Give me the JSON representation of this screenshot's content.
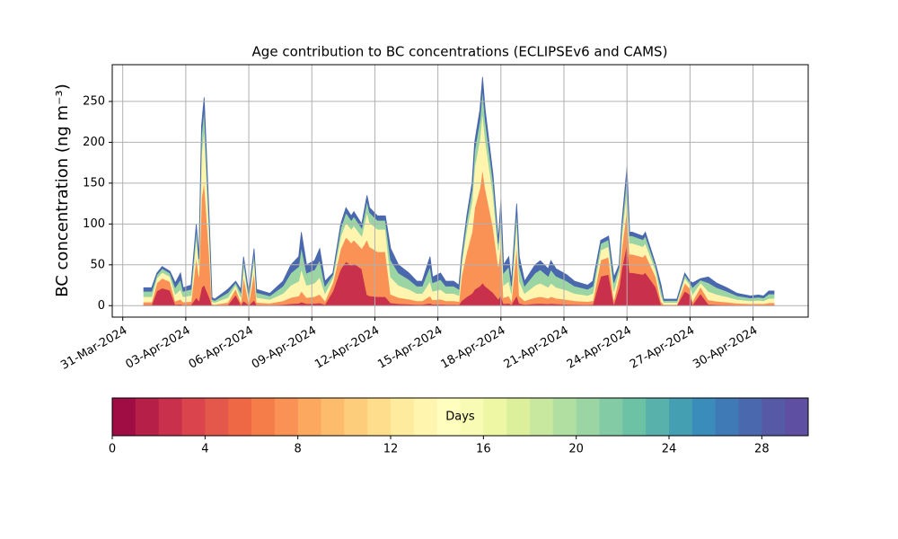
{
  "chart_data": {
    "type": "area",
    "title": "Age contribution to BC concentrations (ECLIPSEv6 and CAMS)",
    "ylabel": "BC concentration (ng m⁻³)",
    "x": [
      "2024-04-01T00:00",
      "2024-04-01T09:00",
      "2024-04-01T15:00",
      "2024-04-01T21:00",
      "2024-04-02T06:00",
      "2024-04-02T12:00",
      "2024-04-02T18:00",
      "2024-04-02T21:00",
      "2024-04-03T06:00",
      "2024-04-03T12:00",
      "2024-04-03T15:00",
      "2024-04-03T18:00",
      "2024-04-03T21:00",
      "2024-04-04T03:00",
      "2024-04-04T06:00",
      "2024-04-04T09:00",
      "2024-04-05T00:00",
      "2024-04-05T09:00",
      "2024-04-05T15:00",
      "2024-04-05T18:00",
      "2024-04-06T00:00",
      "2024-04-06T06:00",
      "2024-04-06T09:00",
      "2024-04-07T00:00",
      "2024-04-07T15:00",
      "2024-04-08T00:00",
      "2024-04-08T09:00",
      "2024-04-08T12:00",
      "2024-04-08T18:00",
      "2024-04-09T03:00",
      "2024-04-09T09:00",
      "2024-04-09T15:00",
      "2024-04-10T00:00",
      "2024-04-10T09:00",
      "2024-04-10T15:00",
      "2024-04-10T21:00",
      "2024-04-11T00:00",
      "2024-04-11T09:00",
      "2024-04-11T15:00",
      "2024-04-11T18:00",
      "2024-04-12T03:00",
      "2024-04-12T12:00",
      "2024-04-12T18:00",
      "2024-04-13T03:00",
      "2024-04-13T15:00",
      "2024-04-14T00:00",
      "2024-04-14T06:00",
      "2024-04-14T15:00",
      "2024-04-14T18:00",
      "2024-04-15T03:00",
      "2024-04-15T09:00",
      "2024-04-15T18:00",
      "2024-04-16T00:00",
      "2024-04-16T03:00",
      "2024-04-16T09:00",
      "2024-04-16T15:00",
      "2024-04-16T18:00",
      "2024-04-17T00:00",
      "2024-04-17T03:00",
      "2024-04-17T06:00",
      "2024-04-17T15:00",
      "2024-04-17T21:00",
      "2024-04-18T00:00",
      "2024-04-18T03:00",
      "2024-04-18T09:00",
      "2024-04-18T12:00",
      "2024-04-18T18:00",
      "2024-04-18T21:00",
      "2024-04-19T03:00",
      "2024-04-19T15:00",
      "2024-04-19T21:00",
      "2024-04-20T06:00",
      "2024-04-20T09:00",
      "2024-04-20T15:00",
      "2024-04-21T03:00",
      "2024-04-21T12:00",
      "2024-04-22T03:00",
      "2024-04-22T09:00",
      "2024-04-22T18:00",
      "2024-04-23T03:00",
      "2024-04-23T09:00",
      "2024-04-23T15:00",
      "2024-04-23T18:00",
      "2024-04-24T00:00",
      "2024-04-24T03:00",
      "2024-04-24T06:00",
      "2024-04-24T18:00",
      "2024-04-24T21:00",
      "2024-04-25T09:00",
      "2024-04-25T15:00",
      "2024-04-25T18:00",
      "2024-04-26T09:00",
      "2024-04-26T18:00",
      "2024-04-27T00:00",
      "2024-04-27T03:00",
      "2024-04-27T12:00",
      "2024-04-27T21:00",
      "2024-04-28T06:00",
      "2024-04-28T18:00",
      "2024-04-29T06:00",
      "2024-04-29T21:00",
      "2024-04-30T06:00",
      "2024-04-30T12:00",
      "2024-04-30T18:00",
      "2024-05-01T00:00"
    ],
    "series": [
      {
        "color": "#c9304b",
        "values": [
          1.1,
          1.1,
          18,
          21.6,
          18.9,
          1.4,
          2,
          1.1,
          1.3,
          10,
          6,
          22,
          25.5,
          10,
          0.5,
          0.4,
          1,
          13.5,
          1,
          6,
          0.8,
          7,
          1,
          0.8,
          1.5,
          2.5,
          3,
          4.5,
          2.5,
          2.8,
          3.5,
          1.5,
          18,
          45,
          54,
          49.5,
          51.8,
          45,
          13.5,
          12,
          11,
          11,
          3.5,
          2.5,
          2,
          1.5,
          1.5,
          3,
          1.8,
          2,
          1.5,
          1.5,
          1.3,
          6,
          11,
          15,
          20,
          24,
          28,
          24,
          16,
          8,
          13,
          2.5,
          3,
          1.5,
          12.5,
          3,
          1.5,
          2.5,
          2.8,
          2.3,
          2.8,
          2.3,
          1.9,
          1.5,
          1.3,
          1.5,
          36,
          38.3,
          1.8,
          22.5,
          45,
          76.5,
          40.5,
          40.5,
          38.3,
          40.5,
          22.5,
          1.3,
          0.4,
          0.4,
          18,
          13.5,
          1.4,
          14.9,
          1.8,
          1.4,
          1.1,
          0.8,
          0.6,
          0.7,
          0.6,
          0.9,
          0.9
        ]
      },
      {
        "color": "#f99254",
        "values": [
          3.3,
          3.3,
          10,
          12,
          10.5,
          4.2,
          6,
          3.3,
          3.8,
          50,
          30,
          110,
          127.5,
          50,
          1.5,
          1.2,
          3,
          7.5,
          3,
          30,
          2.3,
          35,
          3,
          2.3,
          4.5,
          7.5,
          9,
          13.5,
          7.5,
          8.3,
          10.5,
          4.5,
          10,
          25,
          30,
          27.5,
          28.8,
          25,
          67.5,
          60,
          55,
          55,
          10.5,
          7.5,
          6,
          4.5,
          4.5,
          9,
          5.3,
          6,
          4.5,
          4.5,
          3.8,
          30,
          55,
          75,
          100,
          120,
          140,
          120,
          80,
          40,
          65,
          7.5,
          9,
          4.5,
          62.5,
          9,
          4.5,
          7.5,
          8.3,
          6.8,
          8.3,
          6.8,
          5.7,
          4.5,
          3.8,
          4.5,
          20,
          21.3,
          5.3,
          12.5,
          25,
          42.5,
          22.5,
          22.5,
          21.3,
          22.5,
          12.5,
          3.8,
          1.2,
          1.2,
          10,
          7.5,
          4.2,
          8.3,
          5.3,
          4.2,
          3.3,
          2.3,
          1.8,
          2,
          1.8,
          2.7,
          2.7
        ]
      },
      {
        "color": "#fff5ae",
        "values": [
          6.6,
          6.6,
          6,
          7.2,
          6.3,
          8.4,
          12,
          6.6,
          7.5,
          25,
          15,
          55,
          63.8,
          25,
          3,
          2.4,
          6,
          4.5,
          6,
          15,
          4.5,
          17.5,
          6,
          4.5,
          9,
          15,
          18,
          27,
          15,
          16.5,
          21,
          9,
          6,
          15,
          18,
          16.5,
          17.3,
          15,
          33.8,
          30,
          27.5,
          27.5,
          21,
          15,
          12,
          9,
          9,
          18,
          10.5,
          12,
          9,
          9,
          7.5,
          15,
          27.5,
          37.5,
          50,
          60,
          70,
          60,
          40,
          20,
          32.5,
          15,
          18,
          9,
          31.3,
          18,
          9,
          15,
          16.5,
          13.5,
          16.5,
          13.5,
          11.4,
          9,
          7.5,
          9,
          12,
          12.8,
          10.5,
          7.5,
          15,
          25.5,
          13.5,
          13.5,
          12.8,
          13.5,
          7.5,
          7.5,
          2.4,
          2.4,
          6,
          4.5,
          8.4,
          5,
          10.5,
          8.4,
          6.6,
          4.5,
          3.6,
          3.9,
          3.6,
          5.4,
          5.4
        ]
      },
      {
        "color": "#9bd5a4",
        "values": [
          6.6,
          6.6,
          4,
          4.8,
          4.2,
          8.4,
          12,
          6.6,
          7.5,
          10,
          6,
          22,
          25.5,
          10,
          3,
          2.4,
          6,
          3,
          6,
          6,
          4.5,
          7,
          6,
          4.5,
          9,
          15,
          18,
          27,
          15,
          16.5,
          21,
          9,
          4,
          10,
          12,
          11,
          11.5,
          10,
          13.5,
          12,
          11,
          11,
          21,
          15,
          12,
          9,
          9,
          18,
          10.5,
          12,
          9,
          9,
          7.5,
          6,
          11,
          15,
          20,
          24,
          28,
          24,
          16,
          8,
          13,
          15,
          18,
          9,
          12.5,
          18,
          9,
          15,
          16.5,
          13.5,
          16.5,
          13.5,
          11.4,
          9,
          7.5,
          9,
          8,
          8.5,
          10.5,
          5,
          10,
          17,
          9,
          9,
          8.5,
          9,
          5,
          7.5,
          2.4,
          2.4,
          4,
          3,
          8.4,
          3.3,
          10.5,
          8.4,
          6.6,
          4.5,
          3.6,
          3.9,
          3.6,
          5.4,
          5.4
        ]
      },
      {
        "color": "#4a68ad",
        "values": [
          4.4,
          4.4,
          2,
          2.4,
          2.1,
          5.6,
          8,
          4.4,
          5,
          5,
          3,
          11,
          12.8,
          5,
          2,
          1.6,
          4,
          1.5,
          4,
          3,
          3,
          3.5,
          4,
          3,
          6,
          10,
          12,
          18,
          10,
          11,
          14,
          6,
          2,
          5,
          6,
          5.5,
          5.8,
          5,
          6.8,
          6,
          5.5,
          5.5,
          14,
          10,
          8,
          6,
          6,
          12,
          7,
          8,
          6,
          6,
          5,
          3,
          5.5,
          7.5,
          10,
          12,
          14,
          12,
          8,
          4,
          6.5,
          10,
          12,
          6,
          6.3,
          12,
          6,
          10,
          11,
          9,
          11,
          9,
          7.6,
          6,
          5,
          6,
          4,
          4.3,
          7,
          2.5,
          5,
          8.5,
          4.5,
          4.5,
          4.3,
          4.5,
          2.5,
          5,
          1.6,
          1.6,
          2,
          1.5,
          5.6,
          1.7,
          7,
          5.6,
          4.4,
          3,
          2.4,
          2.6,
          2.4,
          3.6,
          3.6
        ]
      }
    ],
    "xlim": [
      "2024-03-30T12:00",
      "2024-05-02T15:00"
    ],
    "xticks": [
      {
        "value": "2024-03-31",
        "label": "31-Mar-2024"
      },
      {
        "value": "2024-04-03",
        "label": "03-Apr-2024"
      },
      {
        "value": "2024-04-06",
        "label": "06-Apr-2024"
      },
      {
        "value": "2024-04-09",
        "label": "09-Apr-2024"
      },
      {
        "value": "2024-04-12",
        "label": "12-Apr-2024"
      },
      {
        "value": "2024-04-15",
        "label": "15-Apr-2024"
      },
      {
        "value": "2024-04-18",
        "label": "18-Apr-2024"
      },
      {
        "value": "2024-04-21",
        "label": "21-Apr-2024"
      },
      {
        "value": "2024-04-24",
        "label": "24-Apr-2024"
      },
      {
        "value": "2024-04-27",
        "label": "27-Apr-2024"
      },
      {
        "value": "2024-04-30",
        "label": "30-Apr-2024"
      }
    ],
    "ylim": [
      -14,
      295
    ],
    "yticks": [
      0,
      50,
      100,
      150,
      200,
      250
    ],
    "grid": true,
    "colorbar": {
      "label": "Days",
      "lim": [
        0,
        30
      ],
      "ticks": [
        0,
        4,
        8,
        12,
        16,
        20,
        24,
        28
      ],
      "colors": [
        "#a00d45",
        "#b51f48",
        "#c9304b",
        "#da444d",
        "#e4574b",
        "#ee6846",
        "#f57d4a",
        "#f99254",
        "#fca85f",
        "#fdbb6c",
        "#fecd7c",
        "#fedd8c",
        "#feeb9d",
        "#fff5ae",
        "#fffebe",
        "#f7fbb3",
        "#eef8a4",
        "#dcf09b",
        "#c7e89e",
        "#b1dfa2",
        "#9bd5a4",
        "#83cba5",
        "#6cc2a5",
        "#58b2ab",
        "#449fb3",
        "#3a8cbb",
        "#3f7ab6",
        "#4a68ad",
        "#5659a5",
        "#5e4fa2"
      ]
    }
  }
}
